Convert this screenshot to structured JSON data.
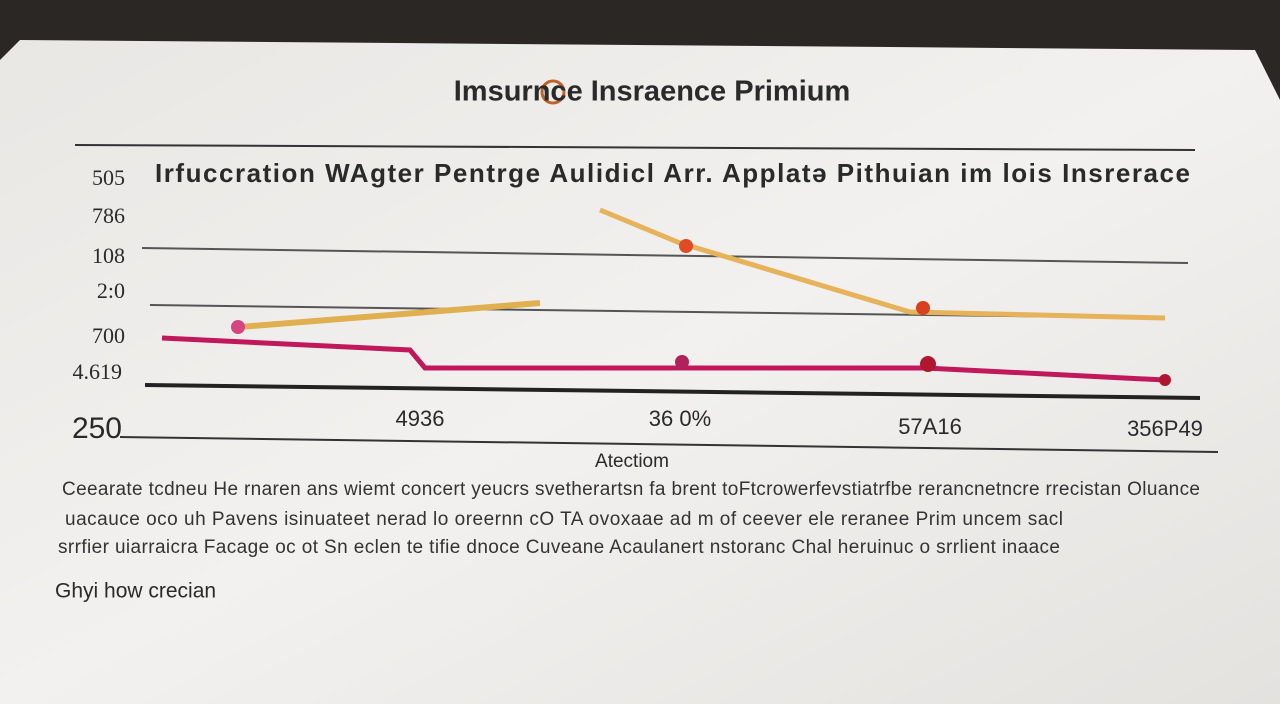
{
  "header": {
    "title": "Imsurnce Insraence Primium"
  },
  "chart": {
    "subtitle": "Irfuccration WAgter Pentrge Aulidicl Arr. Applatə Pithuian im lois Insrerace",
    "y_labels": [
      "505",
      "786",
      "108",
      "2:0",
      "700",
      "4.619",
      "250"
    ],
    "x_labels": [
      "4936",
      "36 0%",
      "57A16",
      "356P49"
    ],
    "x_axis_label": "Atectiom"
  },
  "body": {
    "lines": [
      "Ceearate tcdneu He rnaren ans wiemt concert yeucrs svetherartsn fa brent toFtcrowerfevstiatrfbe rerancnetncre rrecistan Oluance",
      "uacauce oco uh Pavens isinuateet nerad lo oreernn cO TA ovoxaae ad m of ceever ele reranee Prim uncem sacl",
      "srrfier uiarraicra Facage oc ot Sn eclen te tifie dnoce Cuveane Acaulanert nstoranc Chal heruinuc o srrlient inaace"
    ]
  },
  "footer": {
    "text": "Ghyi how crecian"
  }
}
